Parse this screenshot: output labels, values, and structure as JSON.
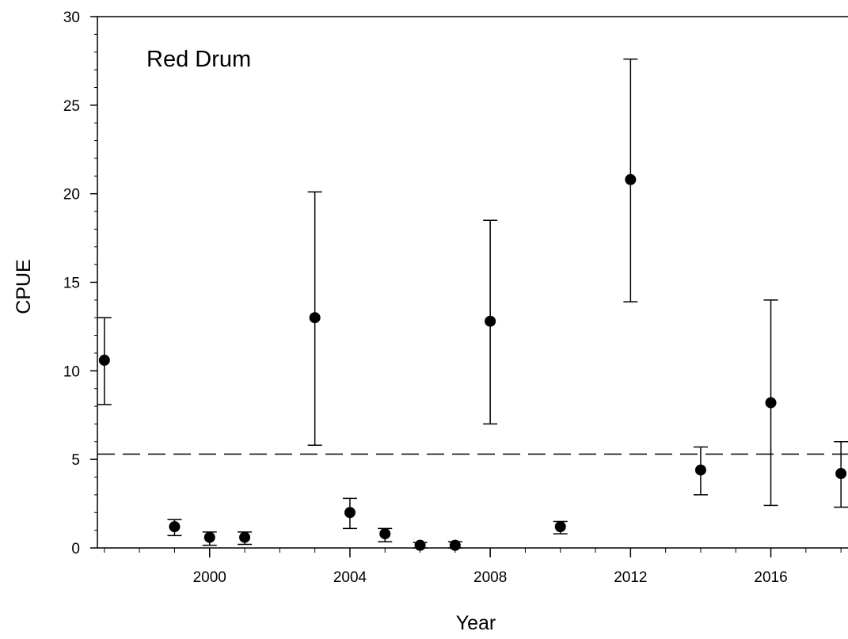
{
  "chart_data": {
    "type": "scatter",
    "annotation": "Red Drum",
    "xlabel": "Year",
    "ylabel": "CPUE",
    "xlim": [
      1996.8,
      2018.2
    ],
    "ylim": [
      0,
      30
    ],
    "x_ticks": [
      2000,
      2004,
      2008,
      2012,
      2016
    ],
    "y_ticks": [
      0,
      5,
      10,
      15,
      20,
      25,
      30
    ],
    "grid": false,
    "legend": "none",
    "reference_line": {
      "y": 5.3,
      "style": "dashed"
    },
    "series": [
      {
        "x": [
          1997,
          1999,
          2000,
          2001,
          2003,
          2004,
          2005,
          2006,
          2007,
          2008,
          2010,
          2012,
          2014,
          2016,
          2018
        ],
        "y": [
          10.6,
          1.2,
          0.6,
          0.6,
          13.0,
          2.0,
          0.8,
          0.15,
          0.15,
          12.8,
          1.2,
          20.8,
          4.4,
          8.2,
          4.2
        ],
        "err_low": [
          8.1,
          0.7,
          0.15,
          0.2,
          5.8,
          1.1,
          0.35,
          0.0,
          0.0,
          7.0,
          0.8,
          13.9,
          3.0,
          2.4,
          2.3
        ],
        "err_high": [
          13.0,
          1.6,
          0.9,
          0.9,
          20.1,
          2.8,
          1.1,
          0.3,
          0.35,
          18.5,
          1.5,
          27.6,
          5.7,
          14.0,
          6.0
        ]
      }
    ]
  }
}
